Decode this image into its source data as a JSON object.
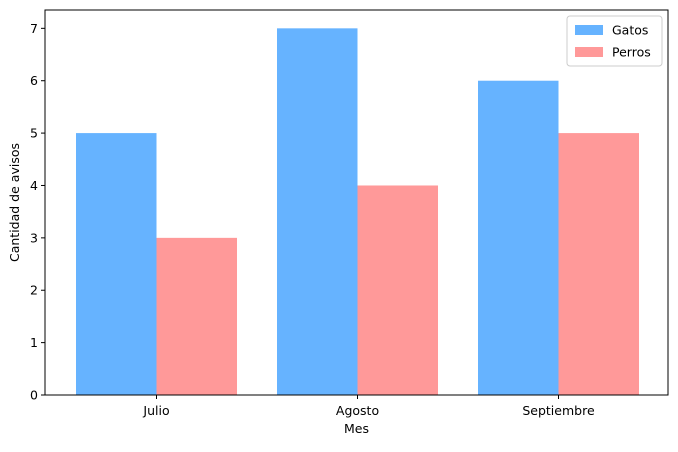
{
  "chart_data": {
    "type": "bar",
    "title": "",
    "xlabel": "Mes",
    "ylabel": "Cantidad de avisos",
    "categories": [
      "Julio",
      "Agosto",
      "Septiembre"
    ],
    "ylim": [
      0,
      7.35
    ],
    "yticks": [
      0,
      1,
      2,
      3,
      4,
      5,
      6,
      7
    ],
    "grid": false,
    "legend_position": "top-right",
    "series": [
      {
        "name": "Gatos",
        "values": [
          5,
          7,
          6
        ],
        "color": "#66b3ff"
      },
      {
        "name": "Perros",
        "values": [
          3,
          4,
          5
        ],
        "color": "#ff9999"
      }
    ]
  }
}
